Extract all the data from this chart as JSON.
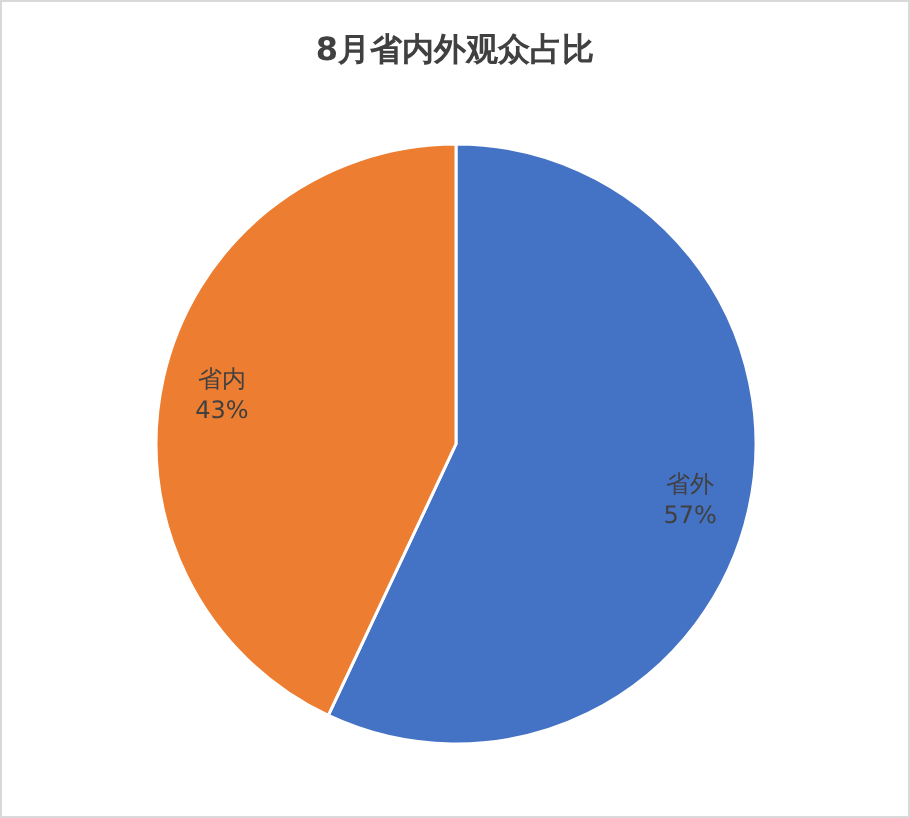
{
  "chart_data": {
    "type": "pie",
    "title": "8月省内外观众占比",
    "categories": [
      "省外",
      "省内"
    ],
    "values": [
      57,
      43
    ],
    "colors": [
      "#4472c4",
      "#ed7d31"
    ],
    "value_labels": [
      "57%",
      "43%"
    ],
    "legend": false
  }
}
